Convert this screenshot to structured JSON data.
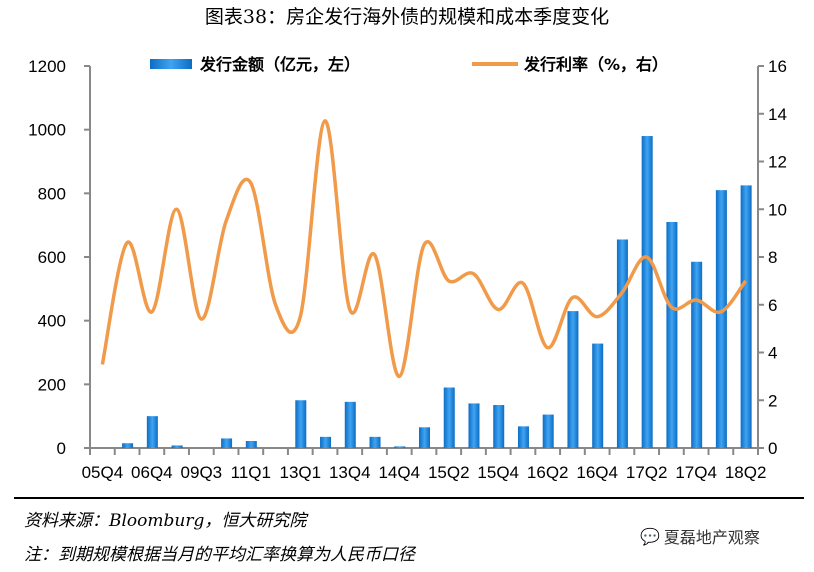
{
  "title": "图表38：房企发行海外债的规模和成本季度变化",
  "chart_data": {
    "type": "bar+line",
    "categories": [
      "05Q4",
      "",
      "06Q4",
      "",
      "09Q3",
      "",
      "11Q1",
      "",
      "13Q1",
      "",
      "13Q4",
      "",
      "14Q4",
      "",
      "15Q2",
      "",
      "15Q4",
      "",
      "16Q2",
      "",
      "16Q4",
      "",
      "17Q2",
      "",
      "17Q4",
      "",
      "18Q2"
    ],
    "series": [
      {
        "name": "发行金额（亿元，左）",
        "type": "bar",
        "axis": "left",
        "color": "#1f87e0",
        "values": [
          0,
          15,
          100,
          8,
          0,
          30,
          22,
          0,
          150,
          35,
          145,
          35,
          5,
          65,
          190,
          140,
          135,
          68,
          105,
          430,
          328,
          655,
          980,
          710,
          585,
          810,
          825
        ]
      },
      {
        "name": "发行利率（%，右）",
        "type": "line",
        "axis": "right",
        "color": "#f09a4a",
        "values": [
          3.5,
          8.6,
          5.7,
          10,
          5.4,
          9.5,
          11.1,
          6,
          5.5,
          13.7,
          5.8,
          8.1,
          3,
          8.5,
          7.0,
          7.3,
          5.8,
          6.9,
          4.2,
          6.3,
          5.5,
          6.5,
          8.0,
          5.9,
          6.2,
          5.7,
          7.0
        ]
      }
    ],
    "yleft": {
      "min": 0,
      "max": 1200,
      "ticks": [
        "0",
        "200",
        "400",
        "600",
        "800",
        "1000",
        "1200"
      ]
    },
    "yright": {
      "min": 0,
      "max": 16,
      "ticks": [
        "0",
        "2",
        "4",
        "6",
        "8",
        "10",
        "12",
        "14",
        "16"
      ]
    },
    "legend": "top"
  },
  "footer": {
    "source": "资料来源：Bloomburg，恒大研究院",
    "note": "注：到期规模根据当月的平均汇率换算为人民币口径"
  },
  "watermark": "夏磊地产观察"
}
